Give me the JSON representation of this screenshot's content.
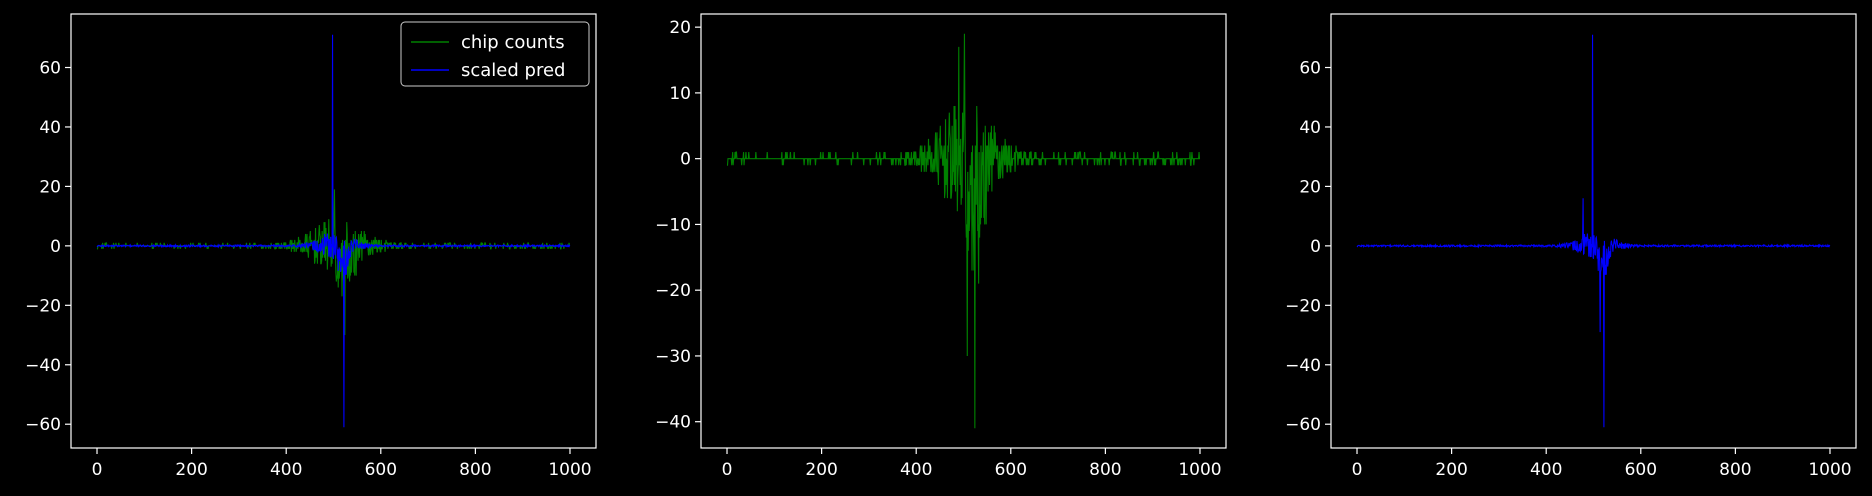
{
  "figure": {
    "background": "#000000",
    "axis_color": "#ffffff"
  },
  "chart_data": [
    {
      "type": "line",
      "xlim": [
        -55,
        1055
      ],
      "ylim": [
        -68,
        78
      ],
      "xticks": [
        0,
        200,
        400,
        600,
        800,
        1000
      ],
      "yticks": [
        -60,
        -40,
        -20,
        0,
        20,
        40,
        60
      ],
      "legend": {
        "position": "top-right",
        "entries": [
          "chip counts",
          "scaled pred"
        ]
      },
      "series": [
        {
          "name": "chip counts",
          "color": "#008000",
          "generator": "counts",
          "amplitude": 1.0
        },
        {
          "name": "scaled pred",
          "color": "#0000ff",
          "generator": "pred",
          "amplitude": 1.0
        }
      ],
      "highlights": [
        {
          "series": "scaled pred",
          "x": 498,
          "y": 71
        },
        {
          "series": "scaled pred",
          "x": 522,
          "y": -61
        },
        {
          "series": "chip counts",
          "x": 502,
          "y": 19
        },
        {
          "series": "chip counts",
          "x": 524,
          "y": -30
        }
      ]
    },
    {
      "type": "line",
      "xlim": [
        -55,
        1055
      ],
      "ylim": [
        -44,
        22
      ],
      "xticks": [
        0,
        200,
        400,
        600,
        800,
        1000
      ],
      "yticks": [
        -40,
        -30,
        -20,
        -10,
        0,
        10,
        20
      ],
      "series": [
        {
          "name": "chip counts",
          "color": "#008000",
          "generator": "counts",
          "amplitude": 1.0
        }
      ],
      "highlights": [
        {
          "series": "chip counts",
          "x": 502,
          "y": 19
        },
        {
          "series": "chip counts",
          "x": 490,
          "y": 17
        },
        {
          "series": "chip counts",
          "x": 524,
          "y": -41
        },
        {
          "series": "chip counts",
          "x": 508,
          "y": -30
        },
        {
          "series": "chip counts",
          "x": 532,
          "y": -19
        }
      ]
    },
    {
      "type": "line",
      "xlim": [
        -55,
        1055
      ],
      "ylim": [
        -68,
        78
      ],
      "xticks": [
        0,
        200,
        400,
        600,
        800,
        1000
      ],
      "yticks": [
        -60,
        -40,
        -20,
        0,
        20,
        40,
        60
      ],
      "series": [
        {
          "name": "scaled pred",
          "color": "#0000ff",
          "generator": "pred",
          "amplitude": 1.0
        }
      ],
      "highlights": [
        {
          "series": "scaled pred",
          "x": 498,
          "y": 71
        },
        {
          "series": "scaled pred",
          "x": 522,
          "y": -61
        },
        {
          "series": "scaled pred",
          "x": 478,
          "y": 16
        },
        {
          "series": "scaled pred",
          "x": 514,
          "y": -29
        }
      ]
    }
  ]
}
